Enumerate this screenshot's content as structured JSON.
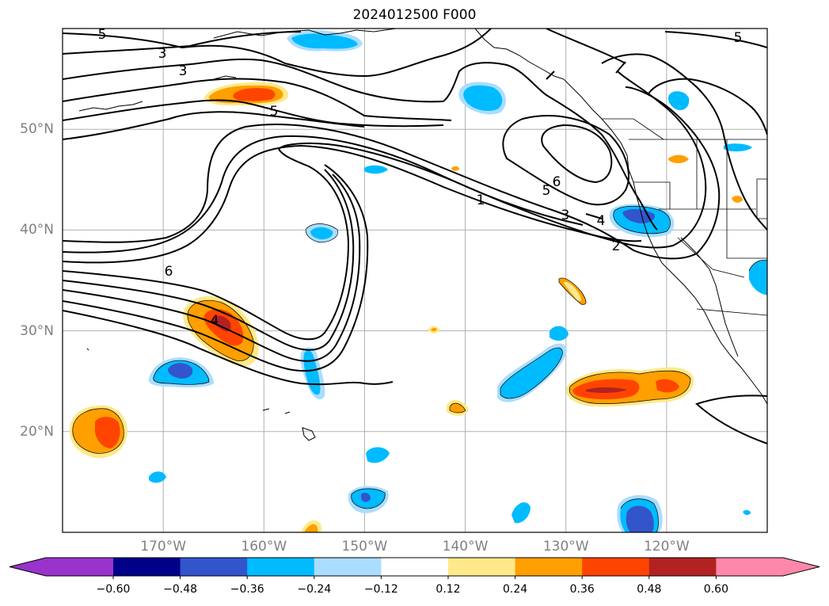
{
  "title": "2024012500 F000",
  "latitude_labels": [
    {
      "lat": 50,
      "label": "50°N"
    },
    {
      "lat": 40,
      "label": "40°N"
    },
    {
      "lat": 30,
      "label": "30°N"
    },
    {
      "lat": 20,
      "label": "20°N"
    }
  ],
  "longitude_labels": [
    {
      "lon": -170,
      "label": "170°W"
    },
    {
      "lon": -160,
      "label": "160°W"
    },
    {
      "lon": -150,
      "label": "150°W"
    },
    {
      "lon": -140,
      "label": "140°W"
    },
    {
      "lon": -130,
      "label": "130°W"
    },
    {
      "lon": -120,
      "label": "120°W"
    }
  ],
  "map_extent": {
    "lon_min": -180,
    "lon_max": -110,
    "lat_min": 10,
    "lat_max": 60
  },
  "colorbar": {
    "ticks": [
      "−0.60",
      "−0.48",
      "−0.36",
      "−0.24",
      "−0.12",
      "0.12",
      "0.24",
      "0.36",
      "0.48",
      "0.60"
    ],
    "under_color": "#9933cc",
    "over_color": "#ff88aa",
    "colors": [
      "#000088",
      "#3355cc",
      "#00bbff",
      "#aaddff",
      "#ffffff",
      "#ffe98a",
      "#ff9f00",
      "#ff4400",
      "#b22222"
    ]
  },
  "contour_labels": [
    "5",
    "3",
    "3",
    "5",
    "6",
    "1",
    "5",
    "6",
    "3",
    "4",
    "2",
    "5",
    "4"
  ]
}
